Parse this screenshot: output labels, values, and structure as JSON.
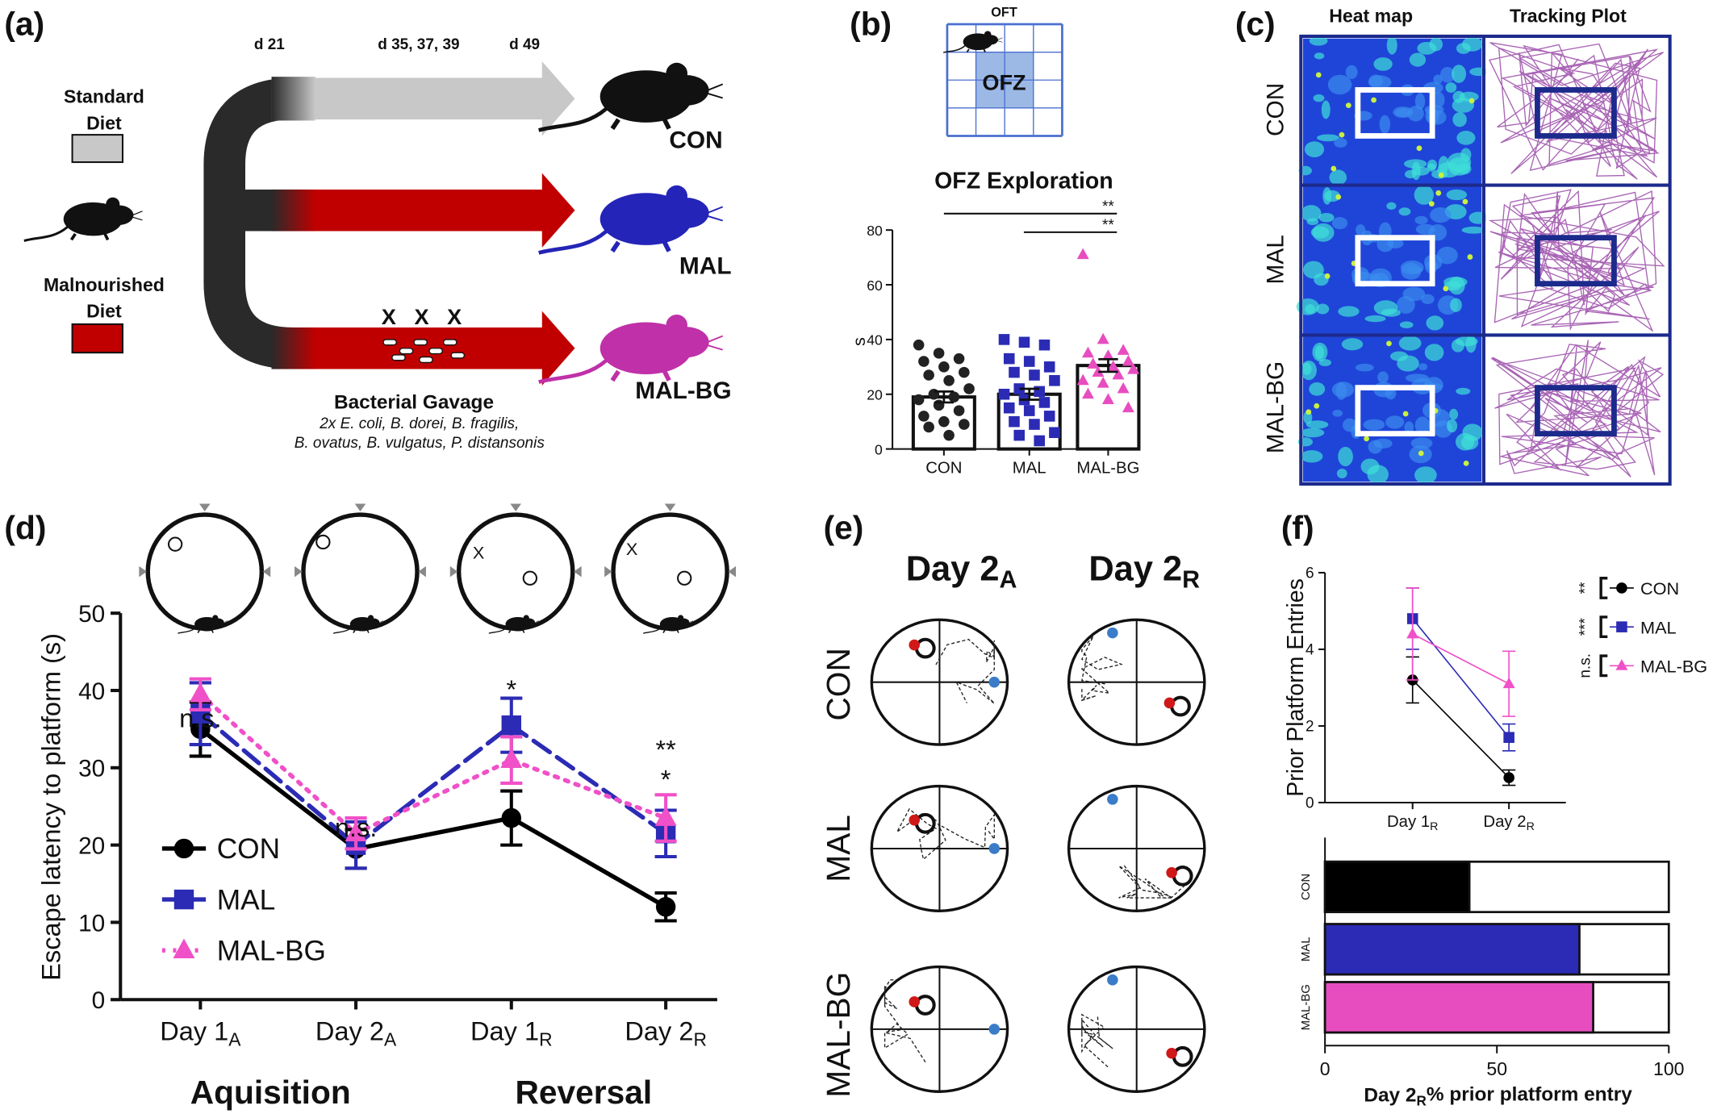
{
  "figure": {
    "panel_labels": [
      "(a)",
      "(b)",
      "(c)",
      "(d)",
      "(e)",
      "(f)"
    ],
    "a": {
      "timepoints": [
        "d 21",
        "d 35, 37, 39",
        "d 49"
      ],
      "diets": [
        [
          "Standard",
          "Diet"
        ],
        [
          "Malnourished",
          "Diet"
        ]
      ],
      "groups": [
        "CON",
        "MAL",
        "MAL-BG"
      ],
      "gavage_marks": [
        "X",
        "X",
        "X"
      ],
      "gavage_title": "Bacterial Gavage",
      "gavage_lines": [
        "2x E. coli, B. dorei, B. fragilis,",
        "B. ovatus, B. vulgatus, P. distansonis"
      ]
    },
    "b": {
      "arena_title": "OFT",
      "zone_label": "OFZ"
    },
    "c": {
      "columns": [
        "Heat map",
        "Tracking Plot"
      ],
      "rows": [
        "CON",
        "MAL",
        "MAL-BG"
      ]
    },
    "d": {
      "maze_marks": [
        "X",
        "X"
      ],
      "phases": [
        "Aquisition",
        "Reversal"
      ]
    },
    "e": {
      "columns": [
        {
          "main": "Day 2",
          "sub": "A"
        },
        {
          "main": "Day 2",
          "sub": "R"
        }
      ],
      "rows": [
        "CON",
        "MAL",
        "MAL-BG"
      ]
    }
  },
  "chart_data": [
    {
      "type": "bar",
      "title": "OFZ Exploration",
      "y_label": "s",
      "categories": [
        "CON",
        "MAL",
        "MAL-BG"
      ],
      "values": [
        19,
        20,
        30.5
      ],
      "errors": [
        2,
        2,
        2.3
      ],
      "colors": [
        "#222222",
        "#2b2bb5",
        "#e84dbf"
      ],
      "markers": [
        "circle",
        "square",
        "triangle"
      ],
      "points": [
        [
          38,
          35,
          33,
          32,
          30,
          28,
          27,
          25,
          22,
          20,
          19,
          18,
          16,
          14,
          12,
          10,
          9,
          8,
          5
        ],
        [
          40,
          39,
          38,
          33,
          32,
          30,
          28,
          27,
          25,
          22,
          21,
          20,
          18,
          17,
          15,
          14,
          12,
          10,
          9,
          6,
          5,
          3
        ],
        [
          71,
          40,
          36,
          35,
          34,
          32,
          31,
          30,
          29,
          28,
          27,
          25,
          24,
          22,
          20,
          18,
          15
        ]
      ],
      "ylim": [
        0,
        80
      ],
      "yticks": [
        0,
        20,
        40,
        60,
        80
      ],
      "significance": [
        "**",
        "**"
      ]
    },
    {
      "type": "line",
      "y_label": "Escape latency to platform (s)",
      "categories": [
        "Day 1",
        "Day 2",
        "Day 1",
        "Day 2"
      ],
      "category_subscripts": [
        "A",
        "A",
        "R",
        "R"
      ],
      "series": [
        {
          "name": "CON",
          "color": "#000000",
          "marker": "circle",
          "dash": "solid",
          "values": [
            35,
            19.5,
            23.5,
            12
          ],
          "errors": [
            3.5,
            2.5,
            3.5,
            1.8
          ]
        },
        {
          "name": "MAL",
          "color": "#2b2bb5",
          "marker": "square",
          "dash": "dashed",
          "values": [
            37,
            20,
            35.5,
            21.5
          ],
          "errors": [
            4,
            3,
            3.5,
            3
          ]
        },
        {
          "name": "MAL-BG",
          "color": "#f050c8",
          "marker": "triangle",
          "dash": "dotted",
          "values": [
            39.5,
            21.5,
            31,
            23.5
          ],
          "errors": [
            2,
            2,
            3,
            3
          ]
        }
      ],
      "ylim": [
        0,
        50
      ],
      "yticks": [
        0,
        10,
        20,
        30,
        40,
        50
      ],
      "annotations": [
        {
          "text": "n.s.",
          "at": 0,
          "color": "#111111"
        },
        {
          "text": "n.s.",
          "at": 1,
          "color": "#111111"
        },
        {
          "text": "*",
          "at": 2,
          "color": "#2b2bb5"
        },
        {
          "text": "**",
          "at": 3,
          "color": "#f050c8"
        },
        {
          "text": "*",
          "at": 3,
          "color": "#2b2bb5"
        }
      ]
    },
    {
      "type": "line",
      "y_label": "Prior Platform Entries",
      "categories": [
        "Day 1",
        "Day 2"
      ],
      "category_subscripts": [
        "R",
        "R"
      ],
      "series": [
        {
          "name": "CON",
          "color": "#000000",
          "marker": "circle",
          "values": [
            3.2,
            0.65
          ],
          "errors": [
            0.6,
            0.2
          ]
        },
        {
          "name": "MAL",
          "color": "#2b2bb5",
          "marker": "square",
          "values": [
            4.8,
            1.7
          ],
          "errors": [
            0.8,
            0.35
          ]
        },
        {
          "name": "MAL-BG",
          "color": "#f050c8",
          "marker": "triangle",
          "values": [
            4.4,
            3.1
          ],
          "errors": [
            1.2,
            0.85
          ]
        }
      ],
      "ylim": [
        0,
        6
      ],
      "yticks": [
        0,
        2,
        4,
        6
      ],
      "legend_significance": [
        "**",
        "***",
        "n.s."
      ]
    },
    {
      "type": "bar",
      "orientation": "horizontal",
      "categories": [
        "CON",
        "MAL",
        "MAL-BG"
      ],
      "values": [
        42,
        74,
        78
      ],
      "colors": [
        "#000000",
        "#2b2bb5",
        "#e84dbf"
      ],
      "xlim": [
        0,
        100
      ],
      "xticks": [
        0,
        50,
        100
      ],
      "x_label": {
        "main": "Day 2",
        "sub": "R",
        "rest": "% prior platform entry"
      }
    }
  ]
}
